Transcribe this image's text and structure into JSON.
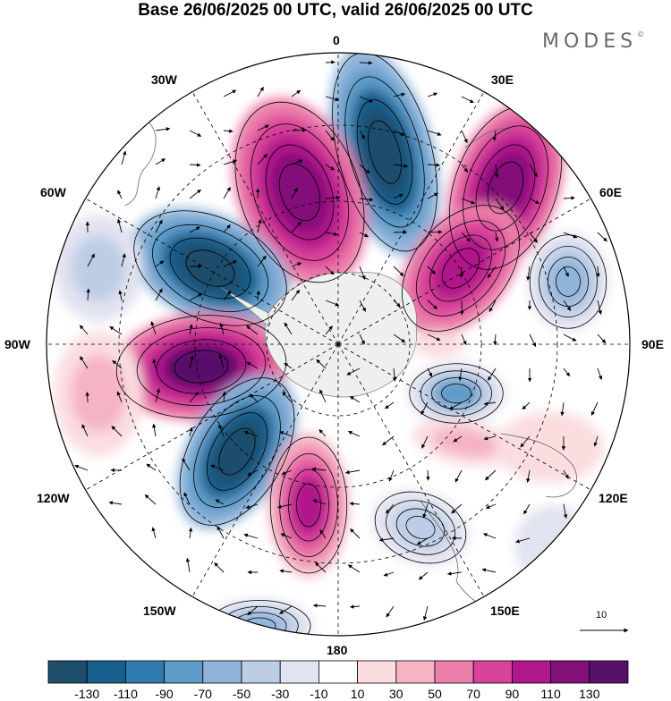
{
  "title": "Base 26/06/2025 00 UTC, valid 26/06/2025 00 UTC",
  "brand": "MODES",
  "brand_mark": "©",
  "meridian_labels": {
    "lon_0": "0",
    "lon_30e": "30E",
    "lon_60e": "60E",
    "lon_90e": "90E",
    "lon_120e": "120E",
    "lon_150e": "150E",
    "lon_180": "180",
    "lon_150w": "150W",
    "lon_120w": "120W",
    "lon_90w": "90W",
    "lon_60w": "60W",
    "lon_30w": "30W"
  },
  "reference_vector": {
    "label": "10"
  },
  "colorbar": {
    "tick_labels": [
      "-130",
      "-110",
      "-90",
      "-70",
      "-50",
      "-30",
      "-10",
      "10",
      "30",
      "50",
      "70",
      "90",
      "110",
      "130"
    ],
    "colors": [
      "#1d4e6c",
      "#175f8d",
      "#2d7bb0",
      "#5d9bc9",
      "#8fb4da",
      "#bdcde6",
      "#e2e3f0",
      "#ffffff",
      "#fbdde0",
      "#f5b3c3",
      "#eb7eaa",
      "#d9439a",
      "#b0178a",
      "#831079",
      "#571069"
    ]
  },
  "map": {
    "projection": "polar-stereographic-south",
    "field_colors": {
      "land_gray": "#d0d0d0",
      "continent_fill": "#efefef"
    }
  }
}
